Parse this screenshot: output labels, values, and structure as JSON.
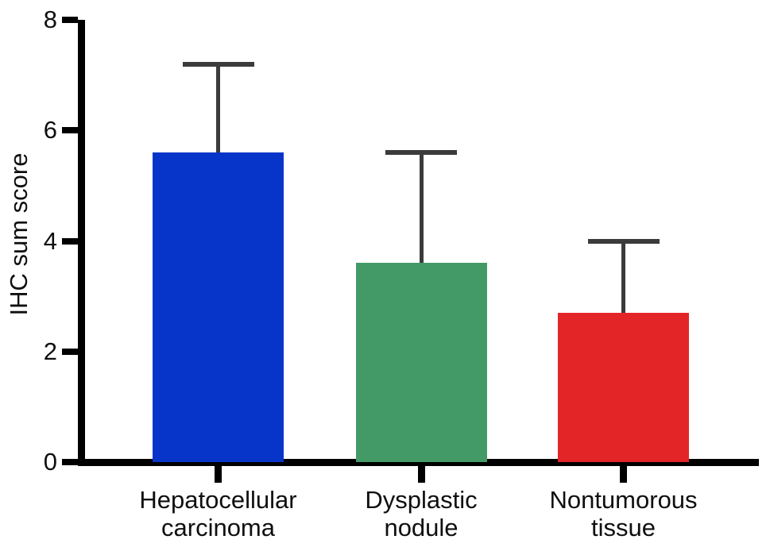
{
  "figure": {
    "background": "#ffffff",
    "title": ""
  },
  "chart_data": {
    "type": "bar",
    "title": "",
    "xlabel": "",
    "ylabel": "IHC sum score",
    "ylim": [
      0,
      8
    ],
    "yticks": [
      0,
      2,
      4,
      6,
      8
    ],
    "grid": false,
    "legend": null,
    "categories": [
      [
        "Hepatocellular",
        "carcinoma"
      ],
      [
        "Dysplastic",
        "nodule"
      ],
      [
        "Nontumorous",
        "tissue"
      ]
    ],
    "values": [
      5.6,
      3.6,
      2.7
    ],
    "errors_upper": [
      1.6,
      2.0,
      1.3
    ],
    "bar_colors": [
      "#0835c9",
      "#449a67",
      "#e32528"
    ],
    "error_color": "#3b3b3b",
    "axis_color": "#000000",
    "text_color": "#0f0f0f"
  }
}
